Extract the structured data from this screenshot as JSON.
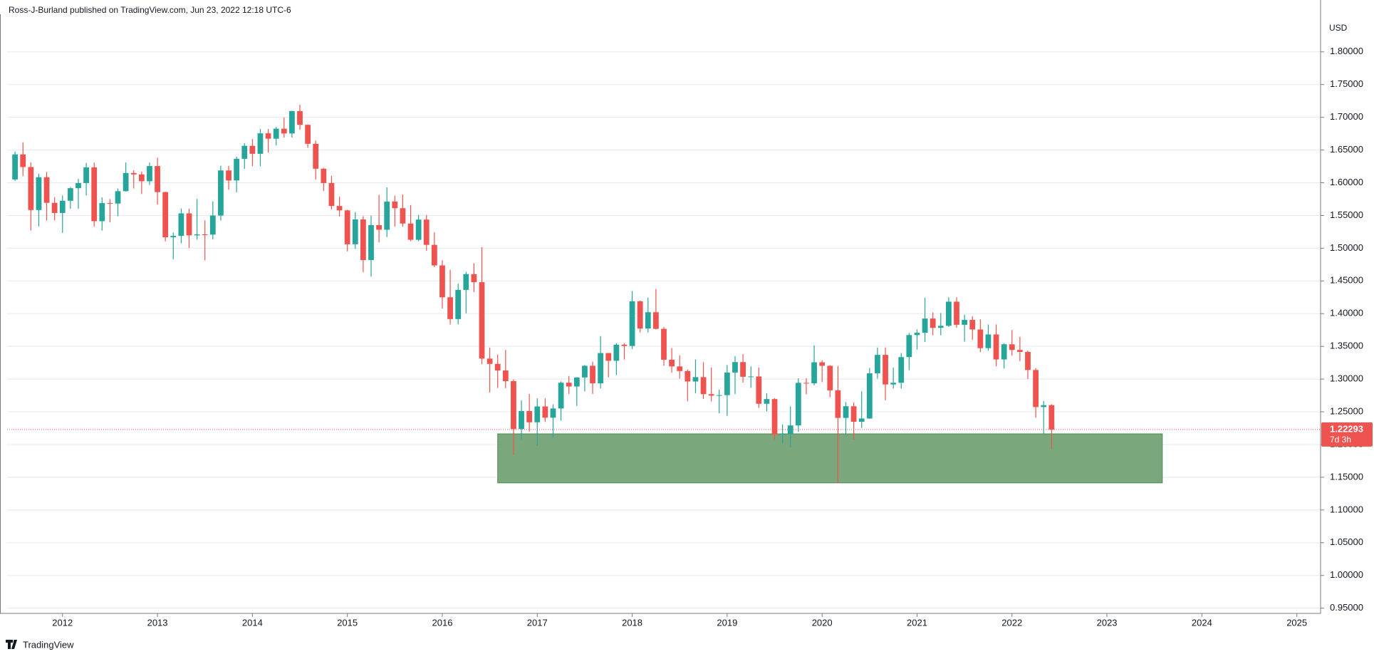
{
  "header": {
    "text": "Ross-J-Burland published on TradingView.com, Jun 23, 2022 12:18 UTC-6"
  },
  "footer": {
    "logo": "TradingView"
  },
  "chart_data": {
    "type": "candlestick",
    "currency": "USD",
    "up_color": "#26a69a",
    "down_color": "#ef5350",
    "grid": true,
    "x": [
      "2011-07",
      "2011-08",
      "2011-09",
      "2011-10",
      "2011-11",
      "2011-12",
      "2012-01",
      "2012-02",
      "2012-03",
      "2012-04",
      "2012-05",
      "2012-06",
      "2012-07",
      "2012-08",
      "2012-09",
      "2012-10",
      "2012-11",
      "2012-12",
      "2013-01",
      "2013-02",
      "2013-03",
      "2013-04",
      "2013-05",
      "2013-06",
      "2013-07",
      "2013-08",
      "2013-09",
      "2013-10",
      "2013-11",
      "2013-12",
      "2014-01",
      "2014-02",
      "2014-03",
      "2014-04",
      "2014-05",
      "2014-06",
      "2014-07",
      "2014-08",
      "2014-09",
      "2014-10",
      "2014-11",
      "2014-12",
      "2015-01",
      "2015-02",
      "2015-03",
      "2015-04",
      "2015-05",
      "2015-06",
      "2015-07",
      "2015-08",
      "2015-09",
      "2015-10",
      "2015-11",
      "2015-12",
      "2016-01",
      "2016-02",
      "2016-03",
      "2016-04",
      "2016-05",
      "2016-06",
      "2016-07",
      "2016-08",
      "2016-09",
      "2016-10",
      "2016-11",
      "2016-12",
      "2017-01",
      "2017-02",
      "2017-03",
      "2017-04",
      "2017-05",
      "2017-06",
      "2017-07",
      "2017-08",
      "2017-09",
      "2017-10",
      "2017-11",
      "2017-12",
      "2018-01",
      "2018-02",
      "2018-03",
      "2018-04",
      "2018-05",
      "2018-06",
      "2018-07",
      "2018-08",
      "2018-09",
      "2018-10",
      "2018-11",
      "2018-12",
      "2019-01",
      "2019-02",
      "2019-03",
      "2019-04",
      "2019-05",
      "2019-06",
      "2019-07",
      "2019-08",
      "2019-09",
      "2019-10",
      "2019-11",
      "2019-12",
      "2020-01",
      "2020-02",
      "2020-03",
      "2020-04",
      "2020-05",
      "2020-06",
      "2020-07",
      "2020-08",
      "2020-09",
      "2020-10",
      "2020-11",
      "2020-12",
      "2021-01",
      "2021-02",
      "2021-03",
      "2021-04",
      "2021-05",
      "2021-06",
      "2021-07",
      "2021-08",
      "2021-09",
      "2021-10",
      "2021-11",
      "2021-12",
      "2022-01",
      "2022-02",
      "2022-03",
      "2022-04",
      "2022-05",
      "2022-06"
    ],
    "candles": [
      [
        1.605,
        1.6476,
        1.6028,
        1.6433
      ],
      [
        1.6433,
        1.6618,
        1.6102,
        1.624
      ],
      [
        1.624,
        1.631,
        1.5271,
        1.5583
      ],
      [
        1.5583,
        1.614,
        1.5333,
        1.6085
      ],
      [
        1.6085,
        1.6166,
        1.5422,
        1.5693
      ],
      [
        1.5693,
        1.578,
        1.5425,
        1.5538
      ],
      [
        1.5538,
        1.5806,
        1.5234,
        1.5725
      ],
      [
        1.5725,
        1.5934,
        1.5602,
        1.5917
      ],
      [
        1.5917,
        1.606,
        1.5602,
        1.5995
      ],
      [
        1.5995,
        1.6302,
        1.5805,
        1.6235
      ],
      [
        1.6235,
        1.6308,
        1.5332,
        1.5413
      ],
      [
        1.5413,
        1.5776,
        1.5269,
        1.5689
      ],
      [
        1.5689,
        1.575,
        1.5395,
        1.5682
      ],
      [
        1.5682,
        1.5913,
        1.5488,
        1.5871
      ],
      [
        1.5871,
        1.6309,
        1.5865,
        1.6149
      ],
      [
        1.6149,
        1.619,
        1.5912,
        1.6127
      ],
      [
        1.6127,
        1.6172,
        1.5828,
        1.6023
      ],
      [
        1.6023,
        1.6308,
        1.5968,
        1.6255
      ],
      [
        1.6255,
        1.6381,
        1.5667,
        1.5857
      ],
      [
        1.5857,
        1.5863,
        1.5104,
        1.5166
      ],
      [
        1.5166,
        1.5239,
        1.4832,
        1.5188
      ],
      [
        1.5188,
        1.5605,
        1.5075,
        1.5532
      ],
      [
        1.5532,
        1.5605,
        1.5003,
        1.5196
      ],
      [
        1.5196,
        1.5752,
        1.513,
        1.5211
      ],
      [
        1.5211,
        1.5426,
        1.4813,
        1.5208
      ],
      [
        1.5208,
        1.5717,
        1.5134,
        1.5499
      ],
      [
        1.5499,
        1.626,
        1.5424,
        1.6188
      ],
      [
        1.6188,
        1.6259,
        1.5893,
        1.6035
      ],
      [
        1.6035,
        1.6399,
        1.5854,
        1.6366
      ],
      [
        1.6366,
        1.6603,
        1.6212,
        1.6564
      ],
      [
        1.6564,
        1.6667,
        1.6253,
        1.6442
      ],
      [
        1.6442,
        1.6822,
        1.6252,
        1.6755
      ],
      [
        1.6755,
        1.6821,
        1.646,
        1.6673
      ],
      [
        1.6673,
        1.6853,
        1.657,
        1.6826
      ],
      [
        1.6826,
        1.6996,
        1.6691,
        1.6753
      ],
      [
        1.6753,
        1.71,
        1.669,
        1.7095
      ],
      [
        1.7095,
        1.7192,
        1.6811,
        1.6885
      ],
      [
        1.6885,
        1.6891,
        1.6534,
        1.6595
      ],
      [
        1.6595,
        1.6644,
        1.6051,
        1.6214
      ],
      [
        1.6214,
        1.6227,
        1.5875,
        1.5995
      ],
      [
        1.5995,
        1.6107,
        1.5591,
        1.5645
      ],
      [
        1.5645,
        1.5785,
        1.5485,
        1.5578
      ],
      [
        1.5578,
        1.5588,
        1.4952,
        1.506
      ],
      [
        1.506,
        1.5553,
        1.499,
        1.5439
      ],
      [
        1.5439,
        1.5488,
        1.4634,
        1.4819
      ],
      [
        1.4819,
        1.5498,
        1.4565,
        1.5353
      ],
      [
        1.5353,
        1.5815,
        1.5088,
        1.5282
      ],
      [
        1.5282,
        1.593,
        1.517,
        1.5713
      ],
      [
        1.5713,
        1.5803,
        1.533,
        1.5611
      ],
      [
        1.5611,
        1.5819,
        1.5329,
        1.5377
      ],
      [
        1.5377,
        1.5659,
        1.5106,
        1.5128
      ],
      [
        1.5128,
        1.5509,
        1.5106,
        1.5437
      ],
      [
        1.5437,
        1.5508,
        1.4958,
        1.5051
      ],
      [
        1.5051,
        1.5242,
        1.471,
        1.4737
      ],
      [
        1.4737,
        1.4815,
        1.4079,
        1.425
      ],
      [
        1.425,
        1.4669,
        1.3835,
        1.3917
      ],
      [
        1.3917,
        1.4459,
        1.3836,
        1.4363
      ],
      [
        1.4363,
        1.4639,
        1.4006,
        1.4604
      ],
      [
        1.4604,
        1.477,
        1.4331,
        1.4481
      ],
      [
        1.4481,
        1.5018,
        1.3229,
        1.3313
      ],
      [
        1.3313,
        1.3482,
        1.2796,
        1.3232
      ],
      [
        1.3232,
        1.3372,
        1.2864,
        1.3132
      ],
      [
        1.3132,
        1.3445,
        1.2862,
        1.2969
      ],
      [
        1.2969,
        1.2996,
        1.1841,
        1.2237
      ],
      [
        1.2237,
        1.2674,
        1.2081,
        1.2512
      ],
      [
        1.2512,
        1.2775,
        1.2199,
        1.234
      ],
      [
        1.234,
        1.2706,
        1.1986,
        1.2582
      ],
      [
        1.2582,
        1.2706,
        1.2345,
        1.241
      ],
      [
        1.241,
        1.2615,
        1.2109,
        1.2551
      ],
      [
        1.2551,
        1.2965,
        1.2367,
        1.2945
      ],
      [
        1.2945,
        1.3048,
        1.2774,
        1.2887
      ],
      [
        1.2887,
        1.303,
        1.2589,
        1.3025
      ],
      [
        1.3025,
        1.3213,
        1.2812,
        1.3203
      ],
      [
        1.3203,
        1.3268,
        1.2774,
        1.2935
      ],
      [
        1.2935,
        1.3657,
        1.2856,
        1.3398
      ],
      [
        1.3398,
        1.34,
        1.3027,
        1.328
      ],
      [
        1.328,
        1.3548,
        1.3062,
        1.3526
      ],
      [
        1.3526,
        1.3549,
        1.33,
        1.3506
      ],
      [
        1.3506,
        1.4345,
        1.346,
        1.4189
      ],
      [
        1.4189,
        1.4199,
        1.3713,
        1.3773
      ],
      [
        1.3773,
        1.4244,
        1.3712,
        1.4022
      ],
      [
        1.4022,
        1.4377,
        1.3757,
        1.3768
      ],
      [
        1.3768,
        1.3795,
        1.3204,
        1.3296
      ],
      [
        1.3296,
        1.3474,
        1.3098,
        1.3194
      ],
      [
        1.3194,
        1.3363,
        1.3007,
        1.3123
      ],
      [
        1.3123,
        1.3144,
        1.2662,
        1.2963
      ],
      [
        1.2963,
        1.3298,
        1.2785,
        1.303
      ],
      [
        1.303,
        1.3258,
        1.2696,
        1.277
      ],
      [
        1.277,
        1.3176,
        1.2658,
        1.2747
      ],
      [
        1.2747,
        1.284,
        1.2477,
        1.2755
      ],
      [
        1.2755,
        1.3214,
        1.2438,
        1.31
      ],
      [
        1.31,
        1.335,
        1.2773,
        1.326
      ],
      [
        1.326,
        1.3381,
        1.2945,
        1.3035
      ],
      [
        1.3035,
        1.3195,
        1.2866,
        1.304
      ],
      [
        1.304,
        1.3176,
        1.2559,
        1.2623
      ],
      [
        1.2623,
        1.2783,
        1.2506,
        1.2695
      ],
      [
        1.2695,
        1.2708,
        1.208,
        1.2154
      ],
      [
        1.2154,
        1.2309,
        1.2015,
        1.2162
      ],
      [
        1.2162,
        1.2582,
        1.1958,
        1.2292
      ],
      [
        1.2292,
        1.3012,
        1.2195,
        1.2943
      ],
      [
        1.2943,
        1.3013,
        1.2769,
        1.2936
      ],
      [
        1.2936,
        1.3515,
        1.2904,
        1.3257
      ],
      [
        1.3257,
        1.3285,
        1.2953,
        1.3203
      ],
      [
        1.3203,
        1.3213,
        1.2725,
        1.2828
      ],
      [
        1.2828,
        1.32,
        1.1409,
        1.2407
      ],
      [
        1.2407,
        1.2648,
        1.2166,
        1.2585
      ],
      [
        1.2585,
        1.2644,
        1.2076,
        1.2348
      ],
      [
        1.2348,
        1.2813,
        1.2252,
        1.2398
      ],
      [
        1.2398,
        1.317,
        1.2392,
        1.3088
      ],
      [
        1.3088,
        1.3483,
        1.3006,
        1.337
      ],
      [
        1.337,
        1.3482,
        1.2676,
        1.2918
      ],
      [
        1.2918,
        1.3177,
        1.2855,
        1.2944
      ],
      [
        1.2944,
        1.3398,
        1.2854,
        1.3336
      ],
      [
        1.3336,
        1.3705,
        1.3135,
        1.3673
      ],
      [
        1.3673,
        1.3759,
        1.3451,
        1.3707
      ],
      [
        1.3707,
        1.4241,
        1.3566,
        1.3925
      ],
      [
        1.3925,
        1.4017,
        1.3669,
        1.3783
      ],
      [
        1.3783,
        1.4009,
        1.3669,
        1.3814
      ],
      [
        1.3814,
        1.425,
        1.3798,
        1.4183
      ],
      [
        1.4183,
        1.4249,
        1.3786,
        1.383
      ],
      [
        1.383,
        1.3984,
        1.3571,
        1.3904
      ],
      [
        1.3904,
        1.3958,
        1.3602,
        1.3758
      ],
      [
        1.3758,
        1.3913,
        1.3412,
        1.3473
      ],
      [
        1.3473,
        1.3834,
        1.3434,
        1.3682
      ],
      [
        1.3682,
        1.3835,
        1.3195,
        1.33
      ],
      [
        1.33,
        1.3548,
        1.3161,
        1.3532
      ],
      [
        1.3532,
        1.3749,
        1.3358,
        1.3445
      ],
      [
        1.3445,
        1.3644,
        1.3273,
        1.3415
      ],
      [
        1.3415,
        1.3437,
        1.3,
        1.3139
      ],
      [
        1.3139,
        1.3167,
        1.2411,
        1.2573
      ],
      [
        1.2573,
        1.2666,
        1.2155,
        1.2602
      ],
      [
        1.2602,
        1.2617,
        1.1934,
        1.22293
      ]
    ],
    "countdown": "7d 3h",
    "zone": {
      "x": [
        "2016-08",
        "2023-08"
      ],
      "y": [
        1.1414,
        1.2163
      ],
      "color": "#7ba77d",
      "border": "#4e8a55"
    },
    "xlim": [
      "2011-06",
      "2025-04"
    ],
    "xticks": [
      2012,
      2013,
      2014,
      2015,
      2016,
      2017,
      2018,
      2019,
      2020,
      2021,
      2022,
      2023,
      2024,
      2025
    ],
    "ylim": [
      0.942,
      1.852
    ],
    "yticks": [
      {
        "value": 0.95,
        "label": "0.95000"
      },
      {
        "value": 1.0,
        "label": "1.00000"
      },
      {
        "value": 1.05,
        "label": "1.05000"
      },
      {
        "value": 1.1,
        "label": "1.10000"
      },
      {
        "value": 1.15,
        "label": "1.15000"
      },
      {
        "value": 1.2,
        "label": "1.20000"
      },
      {
        "value": 1.25,
        "label": "1.25000"
      },
      {
        "value": 1.3,
        "label": "1.30000"
      },
      {
        "value": 1.35,
        "label": "1.35000"
      },
      {
        "value": 1.4,
        "label": "1.40000"
      },
      {
        "value": 1.45,
        "label": "1.45000"
      },
      {
        "value": 1.5,
        "label": "1.50000"
      },
      {
        "value": 1.55,
        "label": "1.55000"
      },
      {
        "value": 1.6,
        "label": "1.60000"
      },
      {
        "value": 1.65,
        "label": "1.65000"
      },
      {
        "value": 1.7,
        "label": "1.70000"
      },
      {
        "value": 1.75,
        "label": "1.75000"
      },
      {
        "value": 1.8,
        "label": "1.80000"
      }
    ]
  }
}
